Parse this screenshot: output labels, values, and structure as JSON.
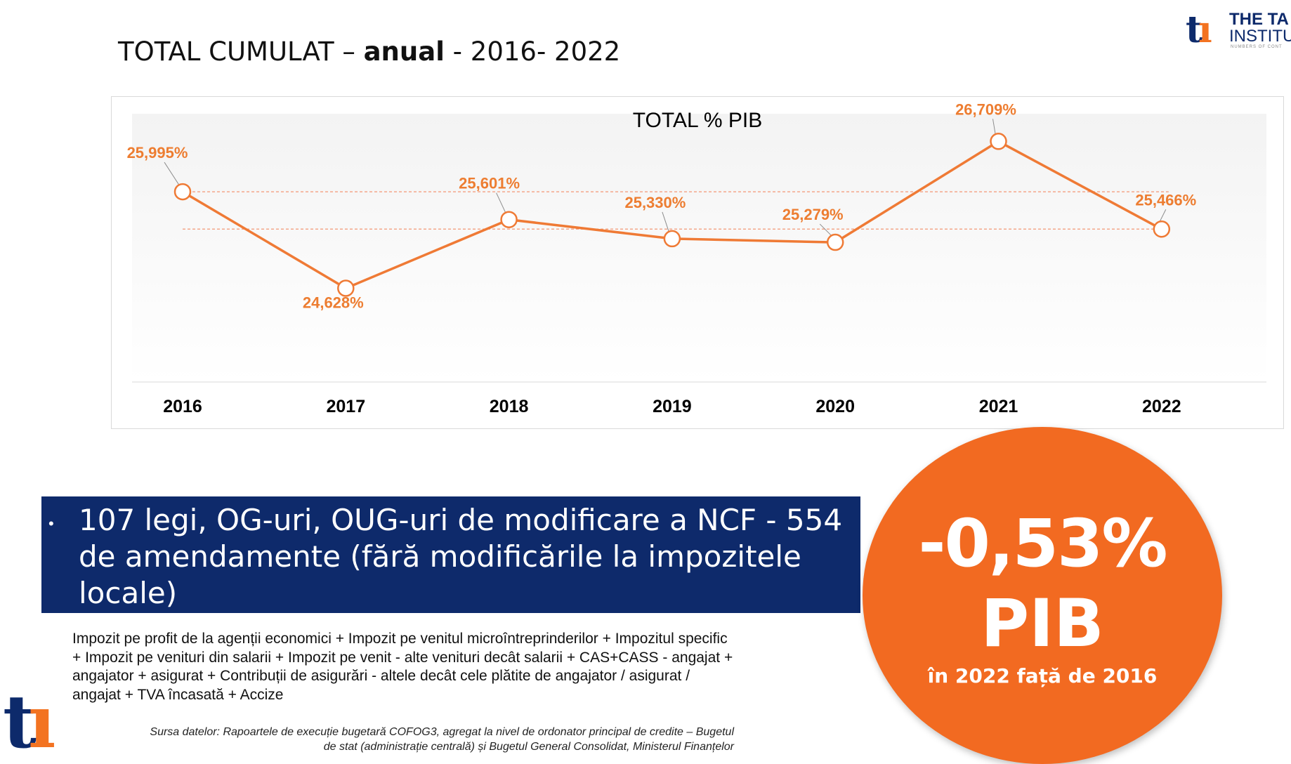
{
  "slide": {
    "title_prefix": "TOTAL CUMULAT – ",
    "title_bold": "anual",
    "title_suffix": " -  2016- 2022"
  },
  "logo": {
    "mark": "t",
    "mark_accent": "ı",
    "name_line1": "THE TA",
    "name_line2": "INSTITU",
    "tagline": "NUMBERS OF CONT"
  },
  "bullet": {
    "text": "107 legi, OG-uri, OUG-uri de modificare a NCF - 554 de amendamente (fără modificările la impozitele locale)"
  },
  "highlight": {
    "value": "-0,53%",
    "unit": "PIB",
    "caption": "în 2022 față de 2016",
    "color": "#f26a21"
  },
  "description": "Impozit pe profit de la agenții economici + Impozit pe venitul microîntreprinderilor  + Impozitul specific + Impozit pe venituri din salarii + Impozit pe venit - alte venituri decât salarii + CAS+CASS - angajat + angajator + asigurat + Contribuții de asigurări - altele decât cele plătite de angajator / asigurat / angajat + TVA încasată + Accize",
  "source": {
    "line1": "Sursa datelor: Rapoartele de execuție bugetară COFOG3, agregat la nivel de ordonator principal de credite – Bugetul",
    "line2": "de stat (administrație centrală) și Bugetul General Consolidat, Ministerul Finanțelor"
  },
  "chart_data": {
    "type": "line",
    "title": "TOTAL % PIB",
    "categories": [
      "2016",
      "2017",
      "2018",
      "2019",
      "2020",
      "2021",
      "2022"
    ],
    "series": [
      {
        "values": [
          25.995,
          24.628,
          25.601,
          25.33,
          25.279,
          26.709,
          25.466
        ],
        "labels": [
          "25,995%",
          "24,628%",
          "25,601%",
          "25,330%",
          "25,279%",
          "26,709%",
          "25,466%"
        ]
      }
    ],
    "reference_lines": [
      25.995,
      25.466
    ],
    "ylim": [
      23.3,
      27.1
    ],
    "xlabel": "",
    "ylabel": "",
    "grid": false,
    "line_color": "#ef7a35",
    "label_color": "#ed7d31"
  }
}
